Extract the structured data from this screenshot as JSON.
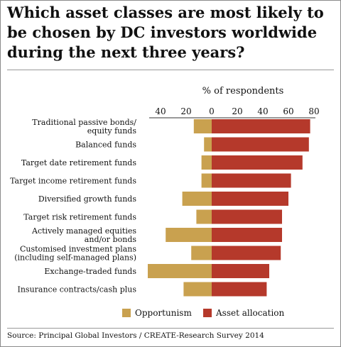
{
  "chart_data": {
    "type": "bar",
    "orientation": "horizontal-diverging",
    "title": "Which asset classes are most likely to be chosen by DC investors worldwide during the next three years?",
    "xlabel": "% of respondents",
    "xlim": [
      -50,
      80
    ],
    "ticks": [
      {
        "value": -40,
        "label": "40"
      },
      {
        "value": -20,
        "label": "20"
      },
      {
        "value": 0,
        "label": "0"
      },
      {
        "value": 20,
        "label": "20"
      },
      {
        "value": 40,
        "label": "40"
      },
      {
        "value": 60,
        "label": "60"
      },
      {
        "value": 80,
        "label": "80"
      }
    ],
    "categories": [
      [
        "Traditional passive bonds/",
        "equity funds"
      ],
      [
        "Balanced funds"
      ],
      [
        "Target date retirement funds"
      ],
      [
        "Target income retirement funds"
      ],
      [
        "Diversified growth funds"
      ],
      [
        "Target risk retirement funds"
      ],
      [
        "Actively managed equities",
        "and/or bonds"
      ],
      [
        "Customised investment plans",
        "(including self-managed plans)"
      ],
      [
        "Exchange-traded funds"
      ],
      [
        "Insurance contracts/cash plus"
      ]
    ],
    "series": [
      {
        "name": "Opportunism",
        "color": "#c9a14f",
        "direction": "left",
        "values": [
          14,
          6,
          8,
          8,
          23,
          12,
          36,
          16,
          50,
          22
        ]
      },
      {
        "name": "Asset allocation",
        "color": "#b5392b",
        "direction": "right",
        "values": [
          77,
          76,
          71,
          62,
          60,
          55,
          55,
          54,
          45,
          43
        ]
      }
    ],
    "legend_position": "bottom",
    "grid": false,
    "source": "Source: Principal Global Investors / CREATE-Research Survey 2014"
  }
}
